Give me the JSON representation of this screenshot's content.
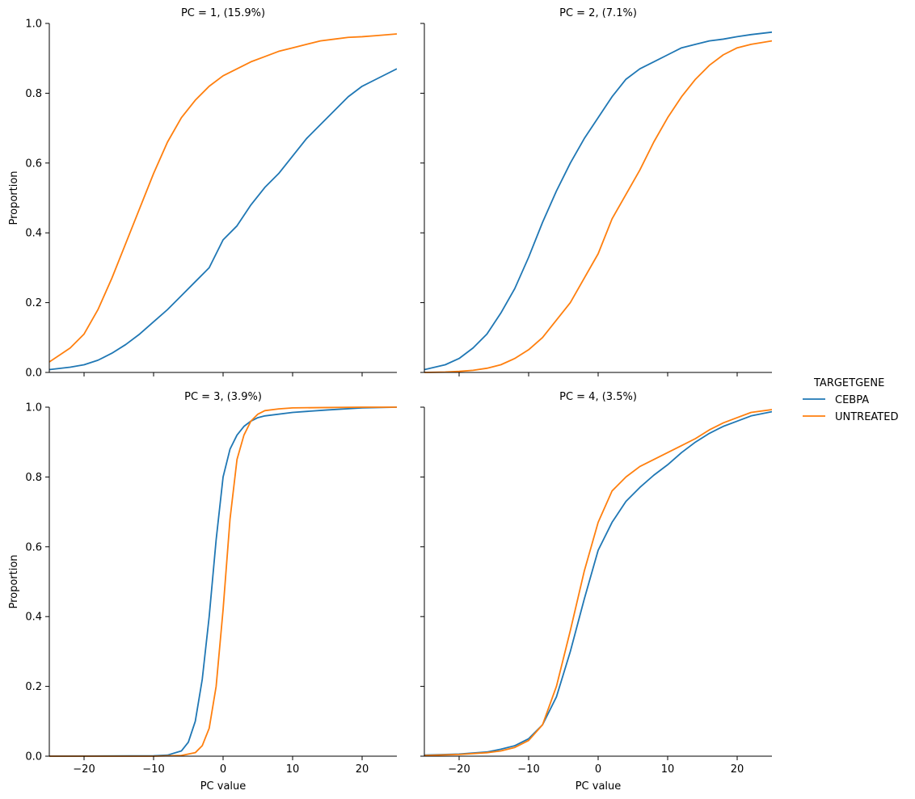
{
  "chart_data": {
    "type": "line",
    "kind": "empirical cumulative distribution (ecdf) facet grid",
    "layout": "2x2 grid, shared x and y axes",
    "xlabel": "PC value",
    "ylabel": "Proportion",
    "xlim": [
      -25,
      25
    ],
    "ylim": [
      0,
      1
    ],
    "x_ticks": [
      -20,
      -10,
      0,
      10,
      20
    ],
    "x_tick_labels": [
      "−20",
      "−10",
      "0",
      "10",
      "20"
    ],
    "y_ticks": [
      0,
      0.2,
      0.4,
      0.6,
      0.8,
      1.0
    ],
    "y_tick_labels": [
      "0.0",
      "0.2",
      "0.4",
      "0.6",
      "0.8",
      "1.0"
    ],
    "grid": false,
    "legend": {
      "title": "TARGETGENE",
      "placement": "right-center",
      "entries": [
        {
          "name": "CEBPA",
          "color": "#1f77b4"
        },
        {
          "name": "UNTREATED",
          "color": "#ff7f0e"
        }
      ]
    },
    "panels": [
      {
        "title": "PC = 1, (15.9%)",
        "series": [
          {
            "name": "CEBPA",
            "color": "#1f77b4",
            "x": [
              -25,
              -22,
              -20,
              -18,
              -16,
              -14,
              -12,
              -10,
              -8,
              -6,
              -4,
              -2,
              0,
              2,
              4,
              6,
              8,
              10,
              12,
              14,
              16,
              18,
              20,
              22,
              25
            ],
            "y": [
              0.008,
              0.015,
              0.022,
              0.035,
              0.055,
              0.08,
              0.11,
              0.145,
              0.18,
              0.22,
              0.26,
              0.3,
              0.38,
              0.42,
              0.48,
              0.53,
              0.57,
              0.62,
              0.67,
              0.71,
              0.75,
              0.79,
              0.82,
              0.84,
              0.87
            ]
          },
          {
            "name": "UNTREATED",
            "color": "#ff7f0e",
            "x": [
              -25,
              -22,
              -20,
              -18,
              -16,
              -14,
              -12,
              -10,
              -8,
              -6,
              -4,
              -2,
              0,
              2,
              4,
              6,
              8,
              10,
              12,
              14,
              16,
              18,
              20,
              22,
              25
            ],
            "y": [
              0.03,
              0.07,
              0.11,
              0.18,
              0.27,
              0.37,
              0.47,
              0.57,
              0.66,
              0.73,
              0.78,
              0.82,
              0.85,
              0.87,
              0.89,
              0.905,
              0.92,
              0.93,
              0.94,
              0.95,
              0.955,
              0.96,
              0.962,
              0.965,
              0.97
            ]
          }
        ]
      },
      {
        "title": "PC = 2, (7.1%)",
        "series": [
          {
            "name": "CEBPA",
            "color": "#1f77b4",
            "x": [
              -25,
              -22,
              -20,
              -18,
              -16,
              -14,
              -12,
              -10,
              -8,
              -6,
              -4,
              -2,
              0,
              2,
              4,
              6,
              8,
              10,
              12,
              14,
              16,
              18,
              20,
              22,
              25
            ],
            "y": [
              0.008,
              0.022,
              0.04,
              0.07,
              0.11,
              0.17,
              0.24,
              0.33,
              0.43,
              0.52,
              0.6,
              0.67,
              0.73,
              0.79,
              0.84,
              0.87,
              0.89,
              0.91,
              0.93,
              0.94,
              0.95,
              0.955,
              0.962,
              0.968,
              0.975
            ]
          },
          {
            "name": "UNTREATED",
            "color": "#ff7f0e",
            "x": [
              -25,
              -22,
              -20,
              -18,
              -16,
              -14,
              -12,
              -10,
              -8,
              -6,
              -4,
              -2,
              0,
              2,
              4,
              6,
              8,
              10,
              12,
              14,
              16,
              18,
              20,
              22,
              25
            ],
            "y": [
              0.0,
              0.001,
              0.003,
              0.006,
              0.012,
              0.022,
              0.04,
              0.065,
              0.1,
              0.15,
              0.2,
              0.27,
              0.34,
              0.44,
              0.51,
              0.58,
              0.66,
              0.73,
              0.79,
              0.84,
              0.88,
              0.91,
              0.93,
              0.94,
              0.95
            ]
          }
        ]
      },
      {
        "title": "PC = 3, (3.9%)",
        "series": [
          {
            "name": "CEBPA",
            "color": "#1f77b4",
            "x": [
              -25,
              -10,
              -8,
              -6,
              -5,
              -4,
              -3,
              -2,
              -1,
              0,
              1,
              2,
              3,
              4,
              5,
              6,
              10,
              15,
              20,
              25
            ],
            "y": [
              0.0,
              0.001,
              0.003,
              0.015,
              0.04,
              0.1,
              0.22,
              0.4,
              0.62,
              0.8,
              0.88,
              0.92,
              0.945,
              0.96,
              0.97,
              0.975,
              0.985,
              0.992,
              0.998,
              1.0
            ]
          },
          {
            "name": "UNTREATED",
            "color": "#ff7f0e",
            "x": [
              -25,
              -10,
              -6,
              -4,
              -3,
              -2,
              -1,
              0,
              1,
              2,
              3,
              4,
              5,
              6,
              8,
              10,
              15,
              20,
              25
            ],
            "y": [
              0.0,
              0.0,
              0.002,
              0.01,
              0.03,
              0.08,
              0.2,
              0.42,
              0.68,
              0.85,
              0.92,
              0.96,
              0.98,
              0.99,
              0.995,
              0.998,
              0.999,
              1.0,
              1.0
            ]
          }
        ]
      },
      {
        "title": "PC = 4, (3.5%)",
        "series": [
          {
            "name": "CEBPA",
            "color": "#1f77b4",
            "x": [
              -25,
              -20,
              -16,
              -14,
              -12,
              -10,
              -8,
              -6,
              -4,
              -2,
              0,
              2,
              4,
              6,
              8,
              10,
              12,
              14,
              16,
              18,
              20,
              22,
              25
            ],
            "y": [
              0.003,
              0.006,
              0.012,
              0.02,
              0.03,
              0.05,
              0.09,
              0.17,
              0.3,
              0.45,
              0.59,
              0.67,
              0.73,
              0.77,
              0.805,
              0.835,
              0.87,
              0.9,
              0.925,
              0.945,
              0.96,
              0.975,
              0.987
            ]
          },
          {
            "name": "UNTREATED",
            "color": "#ff7f0e",
            "x": [
              -25,
              -20,
              -16,
              -14,
              -12,
              -10,
              -8,
              -6,
              -4,
              -2,
              0,
              2,
              4,
              6,
              8,
              10,
              12,
              14,
              16,
              18,
              20,
              22,
              25
            ],
            "y": [
              0.002,
              0.005,
              0.01,
              0.015,
              0.025,
              0.045,
              0.09,
              0.2,
              0.36,
              0.53,
              0.67,
              0.76,
              0.8,
              0.83,
              0.85,
              0.87,
              0.89,
              0.91,
              0.935,
              0.955,
              0.97,
              0.985,
              0.993
            ]
          }
        ]
      }
    ]
  }
}
